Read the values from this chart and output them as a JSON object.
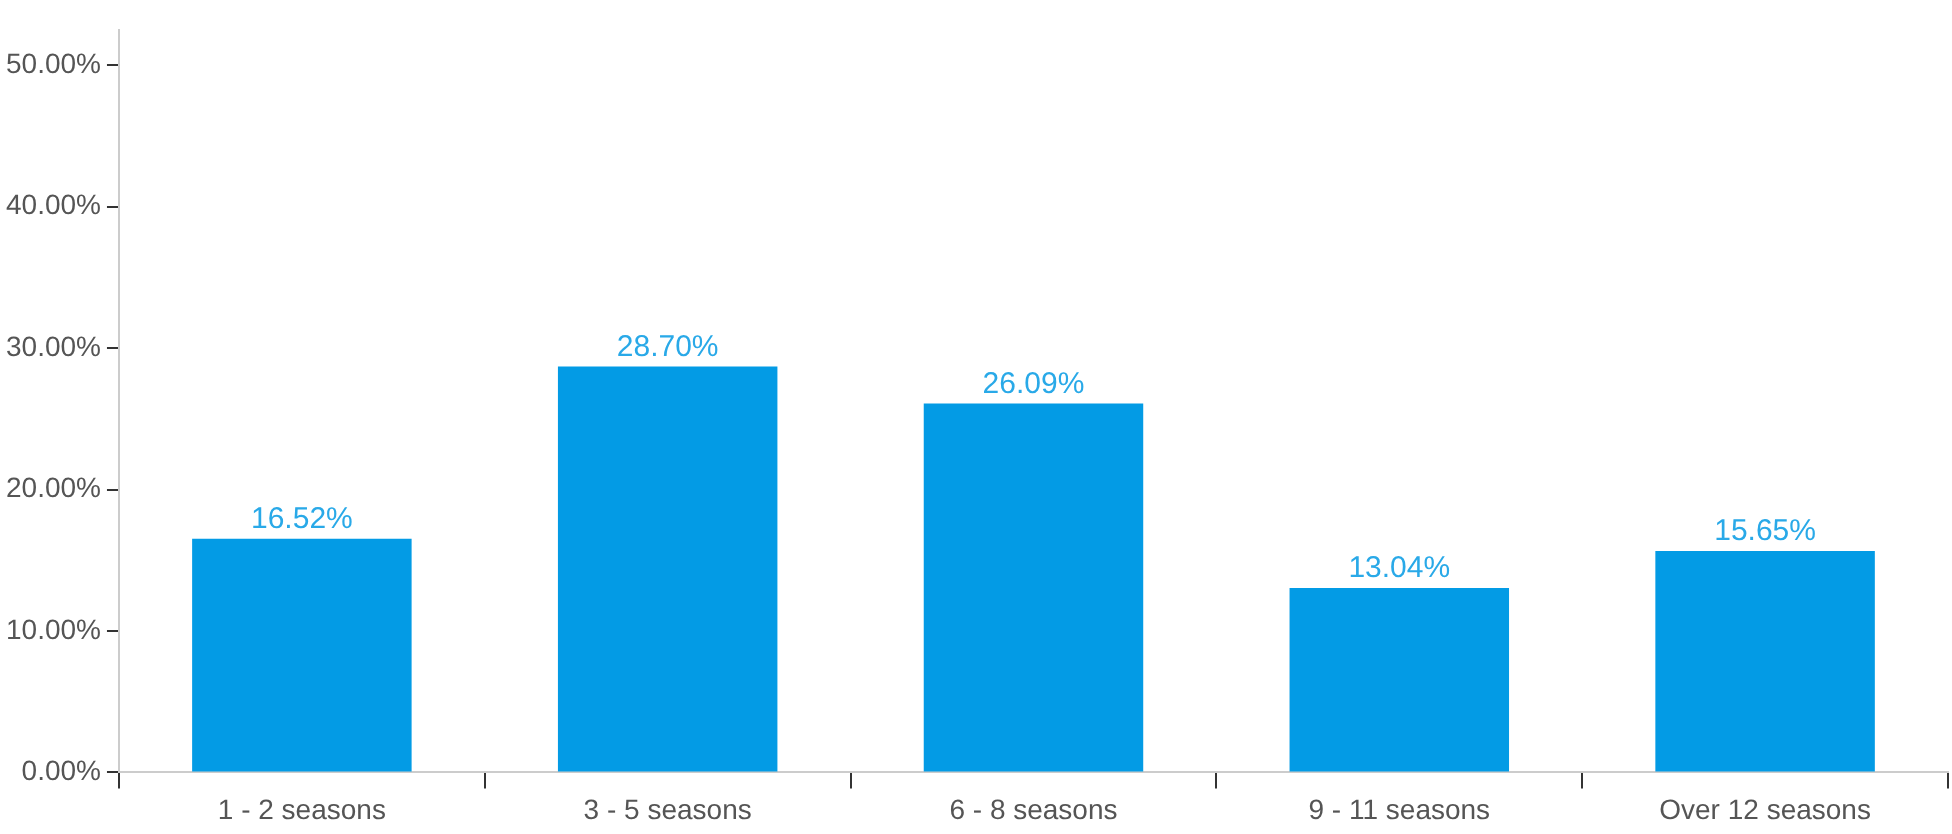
{
  "chart_data": {
    "type": "bar",
    "categories": [
      "1 - 2 seasons",
      "3 - 5 seasons",
      "6 - 8 seasons",
      "9 - 11 seasons",
      "Over 12 seasons"
    ],
    "values": [
      16.52,
      28.7,
      26.09,
      13.04,
      15.65
    ],
    "value_labels": [
      "16.52%",
      "28.70%",
      "26.09%",
      "13.04%",
      "15.65%"
    ],
    "color": "#039be5",
    "ylim": [
      0,
      52.5
    ],
    "yticks": [
      {
        "value": 0,
        "label": "0.00%"
      },
      {
        "value": 10,
        "label": "10.00%"
      },
      {
        "value": 20,
        "label": "20.00%"
      },
      {
        "value": 30,
        "label": "30.00%"
      },
      {
        "value": 40,
        "label": "40.00%"
      },
      {
        "value": 50,
        "label": "50.00%"
      }
    ],
    "grid": false,
    "legend": false
  }
}
